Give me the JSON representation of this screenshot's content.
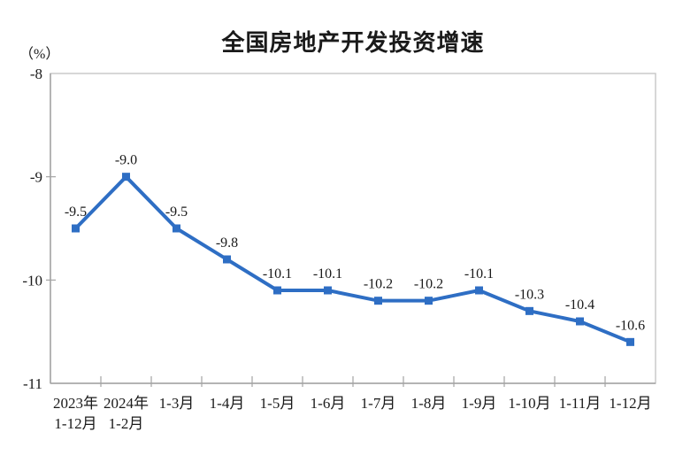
{
  "chart_data": {
    "type": "line",
    "title": "全国房地产开发投资增速",
    "unit_label": "（%）",
    "categories": [
      [
        "2023年",
        "1-12月"
      ],
      [
        "2024年",
        "1-2月"
      ],
      [
        "1-3月"
      ],
      [
        "1-4月"
      ],
      [
        "1-5月"
      ],
      [
        "1-6月"
      ],
      [
        "1-7月"
      ],
      [
        "1-8月"
      ],
      [
        "1-9月"
      ],
      [
        "1-10月"
      ],
      [
        "1-11月"
      ],
      [
        "1-12月"
      ]
    ],
    "values": [
      -9.5,
      -9.0,
      -9.5,
      -9.8,
      -10.1,
      -10.1,
      -10.2,
      -10.2,
      -10.1,
      -10.3,
      -10.4,
      -10.6
    ],
    "point_labels": [
      "-9.5",
      "-9.0",
      "-9.5",
      "-9.8",
      "-10.1",
      "-10.1",
      "-10.2",
      "-10.2",
      "-10.1",
      "-10.3",
      "-10.4",
      "-10.6"
    ],
    "xlabel": "",
    "ylabel": "（%）",
    "ylim": [
      -11,
      -8
    ],
    "yticks": [
      -8,
      -9,
      -10,
      -11
    ],
    "ytick_labels": [
      "-8",
      "-9",
      "-10",
      "-11"
    ],
    "grid": false,
    "legend_position": "none",
    "line_color": "#2E6EC4",
    "marker": "square",
    "text_color": "#1a1a1a",
    "border_color": "#c6c6c6",
    "axis_color": "#a3a3a3",
    "background_color": "#ffffff"
  }
}
